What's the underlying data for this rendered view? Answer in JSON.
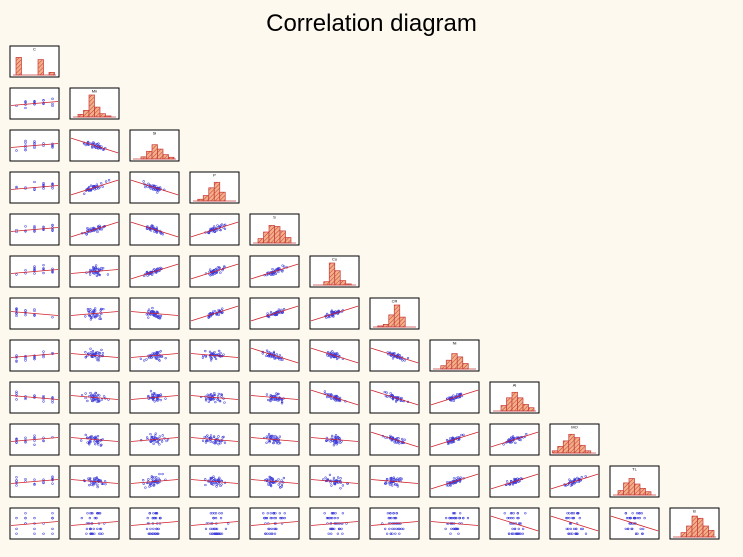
{
  "chart_data": {
    "type": "scatter-matrix",
    "title": "Correlation diagram",
    "variables": [
      "C",
      "Mn",
      "Si",
      "P",
      "S",
      "Cu",
      "CR",
      "Ni",
      "Al",
      "MO",
      "TL",
      "B"
    ],
    "diagonal": "histogram",
    "lower_triangle": "scatter-with-regression-line",
    "correlation_sign": [
      [],
      [
        "+"
      ],
      [
        "+",
        "-"
      ],
      [
        "+",
        "+",
        "-"
      ],
      [
        "+",
        "+",
        "-",
        "+"
      ],
      [
        "+",
        "+",
        "+",
        "+",
        "+"
      ],
      [
        "-",
        "+",
        "-",
        "+",
        "+",
        "+"
      ],
      [
        "+",
        "-",
        "+",
        "-",
        "-",
        "-",
        "-"
      ],
      [
        "-",
        "-",
        "+",
        "-",
        "-",
        "-",
        "-",
        "+"
      ],
      [
        "+",
        "-",
        "+",
        "-",
        "-",
        "-",
        "-",
        "+",
        "+"
      ],
      [
        "+",
        "-",
        "+",
        "-",
        "-",
        "-",
        "-",
        "+",
        "+",
        "+"
      ],
      [
        "+",
        "+",
        "+",
        "+",
        "+",
        "+",
        "+",
        "-",
        "-",
        "-",
        "-"
      ]
    ],
    "histograms": [
      [
        0.8,
        0,
        0.7,
        0.12
      ],
      [
        0.12,
        0.3,
        1.0,
        0.45,
        0.15,
        0.05
      ],
      [
        0.1,
        0.35,
        0.65,
        0.45,
        0.2,
        0.08
      ],
      [
        0.08,
        0.25,
        0.6,
        0.85,
        0.4
      ],
      [
        0.2,
        0.5,
        0.8,
        0.75,
        0.55,
        0.25
      ],
      [
        0.15,
        1.0,
        0.65,
        0.2,
        0.05
      ],
      [
        0.05,
        0.12,
        0.55,
        1.0,
        0.45
      ],
      [
        0.15,
        0.4,
        0.7,
        0.55,
        0.25
      ],
      [
        0.25,
        0.6,
        0.85,
        0.6,
        0.3,
        0.15
      ],
      [
        0.1,
        0.3,
        0.55,
        0.85,
        0.7,
        0.35,
        0.1
      ],
      [
        0.2,
        0.55,
        0.75,
        0.5,
        0.3,
        0.15
      ],
      [
        0.2,
        0.5,
        0.95,
        0.85,
        0.5,
        0.3
      ]
    ],
    "grid": false,
    "legend": "none"
  },
  "colors": {
    "background": "#fdf9ef",
    "panel": "#ffffff",
    "frame": "#000000",
    "points": "#3b3bd8",
    "regression": "#d0202a",
    "histogram_fill": "#f2b088",
    "histogram_edge": "#c83a3a"
  }
}
